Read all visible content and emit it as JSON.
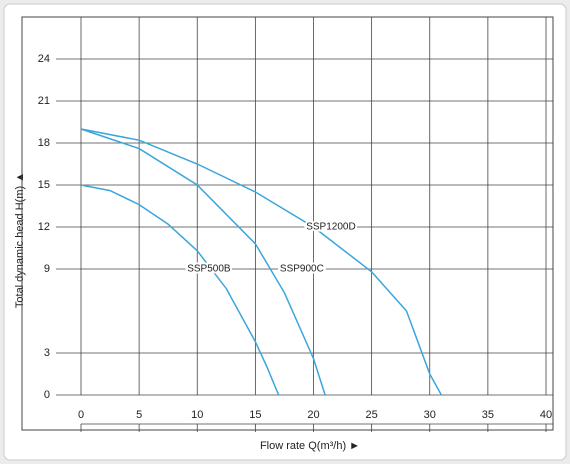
{
  "chart_data": {
    "type": "line",
    "x_label": "Flow rate Q(m³/h) ►",
    "y_label": "Total dynamic head H(m) ▲",
    "xlim": [
      0,
      40
    ],
    "xticks": [
      0,
      5,
      10,
      15,
      20,
      25,
      30,
      35,
      40
    ],
    "ylim": [
      0,
      27
    ],
    "yticks": [
      0,
      3,
      9,
      12,
      15,
      18,
      21,
      24
    ],
    "grid": true,
    "series": [
      {
        "name": "SSP500B",
        "color": "#3aa5dc",
        "x": [
          0,
          2.5,
          5,
          7.5,
          10,
          12.5,
          15,
          16,
          17
        ],
        "values": [
          15,
          14.6,
          13.6,
          12.2,
          10.3,
          7.6,
          3.8,
          2,
          0
        ]
      },
      {
        "name": "SSP900C",
        "color": "#3aa5dc",
        "x": [
          0,
          5,
          10,
          15,
          17.5,
          20,
          21
        ],
        "values": [
          19,
          17.6,
          15,
          10.8,
          7.3,
          2.6,
          0
        ]
      },
      {
        "name": "SSP1200D",
        "color": "#3aa5dc",
        "x": [
          0,
          5,
          10,
          15,
          20,
          25,
          28,
          30,
          31
        ],
        "values": [
          19,
          18.2,
          16.5,
          14.5,
          12,
          8.8,
          6,
          1.5,
          0
        ]
      }
    ]
  }
}
